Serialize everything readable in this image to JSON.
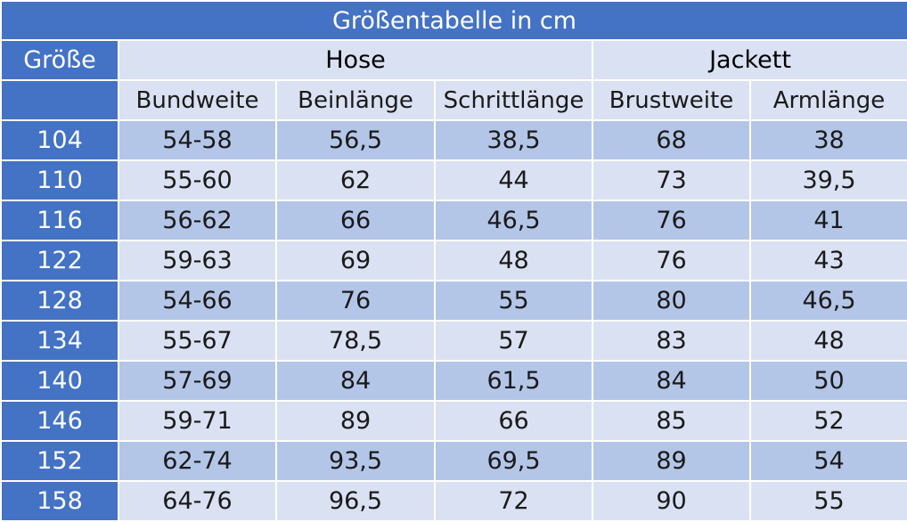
{
  "title": "Größentabelle in cm",
  "corner_label": "Größe",
  "groups": {
    "trousers": "Hose",
    "jacket": "Jackett"
  },
  "columns": [
    "Bundweite",
    "Beinlänge",
    "Schrittlänge",
    "Brustweite",
    "Armlänge"
  ],
  "rows": [
    {
      "size": "104",
      "values": [
        "54-58",
        "56,5",
        "38,5",
        "68",
        "38"
      ]
    },
    {
      "size": "110",
      "values": [
        "55-60",
        "62",
        "44",
        "73",
        "39,5"
      ]
    },
    {
      "size": "116",
      "values": [
        "56-62",
        "66",
        "46,5",
        "76",
        "41"
      ]
    },
    {
      "size": "122",
      "values": [
        "59-63",
        "69",
        "48",
        "76",
        "43"
      ]
    },
    {
      "size": "128",
      "values": [
        "54-66",
        "76",
        "55",
        "80",
        "46,5"
      ]
    },
    {
      "size": "134",
      "values": [
        "55-67",
        "78,5",
        "57",
        "83",
        "48"
      ]
    },
    {
      "size": "140",
      "values": [
        "57-69",
        "84",
        "61,5",
        "84",
        "50"
      ]
    },
    {
      "size": "146",
      "values": [
        "59-71",
        "89",
        "66",
        "85",
        "52"
      ]
    },
    {
      "size": "152",
      "values": [
        "62-74",
        "93,5",
        "69,5",
        "89",
        "54"
      ]
    },
    {
      "size": "158",
      "values": [
        "64-76",
        "96,5",
        "72",
        "90",
        "55"
      ]
    }
  ],
  "colors": {
    "header_blue": "#4472c4",
    "row_dark": "#b4c6e7",
    "row_light": "#d9e1f2"
  }
}
